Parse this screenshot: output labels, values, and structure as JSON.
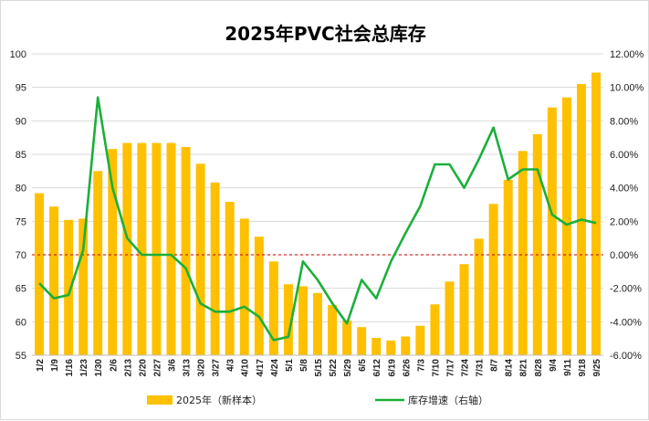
{
  "chart_data": {
    "type": "bar",
    "title": "2025年PVC社会总库存",
    "categories": [
      "1/2",
      "1/9",
      "1/16",
      "1/23",
      "1/30",
      "2/6",
      "2/13",
      "2/20",
      "2/27",
      "3/6",
      "3/13",
      "3/20",
      "3/27",
      "4/3",
      "4/10",
      "4/17",
      "4/24",
      "5/1",
      "5/8",
      "5/15",
      "5/22",
      "5/29",
      "6/5",
      "6/12",
      "6/19",
      "6/26",
      "7/3",
      "7/10",
      "7/17",
      "7/24",
      "7/31",
      "8/7",
      "8/14",
      "8/21",
      "8/28",
      "9/4",
      "9/11",
      "9/18",
      "9/25"
    ],
    "y_left": {
      "min": 55,
      "max": 100,
      "step": 5,
      "ticks": [
        "55",
        "60",
        "65",
        "70",
        "75",
        "80",
        "85",
        "90",
        "95",
        "100"
      ]
    },
    "y_right": {
      "min": -6,
      "max": 12,
      "step": 2,
      "ticks": [
        "-6.00%",
        "-4.00%",
        "-2.00%",
        "0.00%",
        "2.00%",
        "4.00%",
        "6.00%",
        "8.00%",
        "10.00%",
        "12.00%"
      ]
    },
    "series": [
      {
        "name": "2025年（新样本）",
        "type": "bar",
        "axis": "left",
        "color": "#FFC000",
        "values": [
          79.2,
          77.2,
          75.2,
          75.4,
          82.5,
          85.8,
          86.7,
          86.7,
          86.7,
          86.7,
          86.1,
          83.6,
          80.8,
          77.9,
          75.4,
          72.7,
          69.0,
          65.6,
          65.3,
          64.3,
          62.5,
          60.2,
          59.2,
          57.6,
          57.2,
          57.8,
          59.4,
          62.6,
          66.0,
          68.6,
          72.4,
          77.6,
          81.2,
          85.5,
          88.0,
          92.0,
          93.5,
          95.5,
          97.2
        ]
      },
      {
        "name": "库存增速（右轴）",
        "type": "line",
        "axis": "right",
        "color": "#1BAF3A",
        "values": [
          -1.7,
          -2.6,
          -2.4,
          0.3,
          9.4,
          4.0,
          1.0,
          0.0,
          0.0,
          0.0,
          -0.8,
          -2.9,
          -3.4,
          -3.4,
          -3.1,
          -3.7,
          -5.1,
          -4.9,
          -0.4,
          -1.5,
          -2.9,
          -4.1,
          -1.5,
          -2.6,
          -0.4,
          1.3,
          2.9,
          5.4,
          5.4,
          4.0,
          5.7,
          7.6,
          4.5,
          5.1,
          5.1,
          2.4,
          1.8,
          2.1,
          1.9
        ]
      }
    ],
    "reference_line": {
      "axis": "right",
      "value": 0,
      "color": "#C00000",
      "style": "dashed"
    },
    "grid": true,
    "legend": {
      "position": "bottom",
      "items": [
        "2025年（新样本）",
        "库存增速（右轴）"
      ]
    }
  }
}
